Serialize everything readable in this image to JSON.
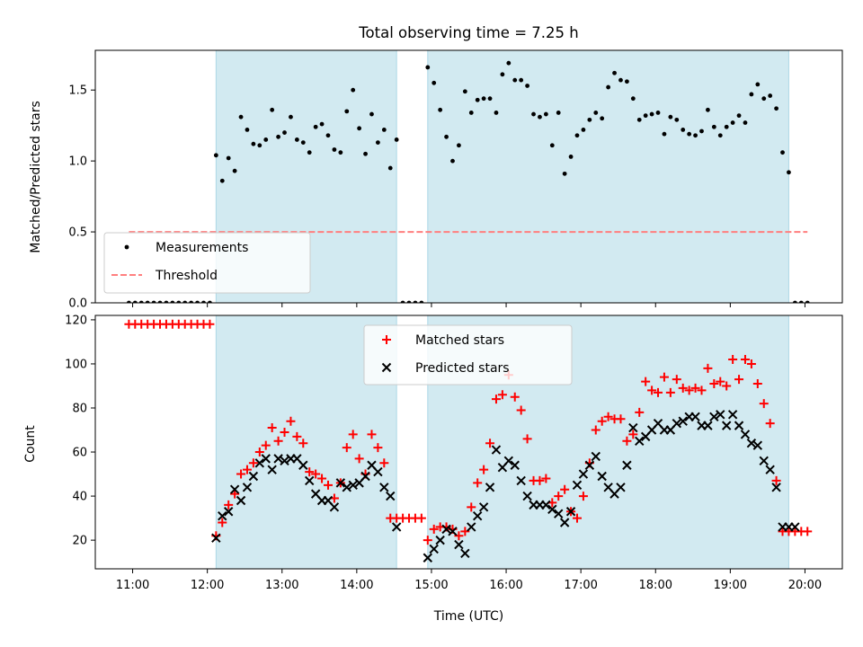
{
  "colors": {
    "span": "#add8e6",
    "measurement": "#000000",
    "threshold": "#ff7f7f",
    "matched": "#ff0000",
    "predicted": "#000000"
  },
  "chart_data": [
    {
      "type": "scatter",
      "title": "Total observing time = 7.25 h",
      "ylabel": "Matched/Predicted stars",
      "xlim": [
        "10:30",
        "20:30"
      ],
      "ylim": [
        0,
        1.78
      ],
      "yticks": [
        0.0,
        0.5,
        1.0,
        1.5
      ],
      "ytick_labels": [
        "0.0",
        "0.5",
        "1.0",
        "1.5"
      ],
      "observing_spans": [
        [
          "12:07",
          "14:32"
        ],
        [
          "14:57",
          "19:47"
        ]
      ],
      "threshold": {
        "value": 0.5,
        "x_range": [
          "10:57",
          "20:02"
        ]
      },
      "legend": {
        "placement": "lower-left",
        "entries": [
          "Measurements",
          "Threshold"
        ]
      },
      "series": [
        {
          "name": "Measurements",
          "x": [
            "10:57",
            "11:02",
            "11:07",
            "11:12",
            "11:17",
            "11:22",
            "11:27",
            "11:32",
            "11:37",
            "11:42",
            "11:47",
            "11:52",
            "11:57",
            "12:02",
            "12:07",
            "12:12",
            "12:17",
            "12:22",
            "12:27",
            "12:32",
            "12:37",
            "12:42",
            "12:47",
            "12:52",
            "12:57",
            "13:02",
            "13:07",
            "13:12",
            "13:17",
            "13:22",
            "13:27",
            "13:32",
            "13:37",
            "13:42",
            "13:47",
            "13:52",
            "13:57",
            "14:02",
            "14:07",
            "14:12",
            "14:17",
            "14:22",
            "14:27",
            "14:32",
            "14:37",
            "14:42",
            "14:47",
            "14:52",
            "14:57",
            "15:02",
            "15:07",
            "15:12",
            "15:17",
            "15:22",
            "15:27",
            "15:32",
            "15:37",
            "15:42",
            "15:47",
            "15:52",
            "15:57",
            "16:02",
            "16:07",
            "16:12",
            "16:17",
            "16:22",
            "16:27",
            "16:32",
            "16:37",
            "16:42",
            "16:47",
            "16:52",
            "16:57",
            "17:02",
            "17:07",
            "17:12",
            "17:17",
            "17:22",
            "17:27",
            "17:32",
            "17:37",
            "17:42",
            "17:47",
            "17:52",
            "17:57",
            "18:02",
            "18:07",
            "18:12",
            "18:17",
            "18:22",
            "18:27",
            "18:32",
            "18:37",
            "18:42",
            "18:47",
            "18:52",
            "18:57",
            "19:02",
            "19:07",
            "19:12",
            "19:17",
            "19:22",
            "19:27",
            "19:32",
            "19:37",
            "19:42",
            "19:47",
            "19:52",
            "19:57",
            "20:02"
          ],
          "y": [
            0,
            0,
            0,
            0,
            0,
            0,
            0,
            0,
            0,
            0,
            0,
            0,
            0,
            0,
            1.04,
            0.86,
            1.02,
            0.93,
            1.31,
            1.22,
            1.12,
            1.11,
            1.15,
            1.36,
            1.17,
            1.2,
            1.31,
            1.15,
            1.13,
            1.06,
            1.24,
            1.26,
            1.18,
            1.08,
            1.06,
            1.35,
            1.5,
            1.23,
            1.05,
            1.33,
            1.13,
            1.22,
            0.95,
            1.15,
            0,
            0,
            0,
            0,
            1.66,
            1.55,
            1.36,
            1.17,
            1.0,
            1.11,
            1.49,
            1.34,
            1.43,
            1.44,
            1.44,
            1.34,
            1.61,
            1.69,
            1.57,
            1.57,
            1.53,
            1.33,
            1.31,
            1.33,
            1.11,
            1.34,
            0.91,
            1.03,
            1.18,
            1.22,
            1.29,
            1.34,
            1.3,
            1.52,
            1.62,
            1.57,
            1.56,
            1.44,
            1.29,
            1.32,
            1.33,
            1.34,
            1.19,
            1.31,
            1.29,
            1.22,
            1.19,
            1.18,
            1.21,
            1.36,
            1.24,
            1.18,
            1.24,
            1.27,
            1.32,
            1.27,
            1.47,
            1.54,
            1.44,
            1.46,
            1.37,
            1.06,
            0.92,
            0,
            0,
            0
          ]
        }
      ]
    },
    {
      "type": "scatter",
      "xlabel": "Time (UTC)",
      "ylabel": "Count",
      "xlim": [
        "10:30",
        "20:30"
      ],
      "ylim": [
        7,
        122
      ],
      "xticks": [
        "11:00",
        "12:00",
        "13:00",
        "14:00",
        "15:00",
        "16:00",
        "17:00",
        "18:00",
        "19:00",
        "20:00"
      ],
      "yticks": [
        20,
        40,
        60,
        80,
        100,
        120
      ],
      "observing_spans": [
        [
          "12:07",
          "14:32"
        ],
        [
          "14:57",
          "19:47"
        ]
      ],
      "legend": {
        "placement": "upper-center",
        "entries": [
          "Matched stars",
          "Predicted stars"
        ]
      },
      "series": [
        {
          "name": "Matched stars",
          "marker": "+",
          "x": [
            "10:57",
            "11:02",
            "11:07",
            "11:12",
            "11:17",
            "11:22",
            "11:27",
            "11:32",
            "11:37",
            "11:42",
            "11:47",
            "11:52",
            "11:57",
            "12:02",
            "12:07",
            "12:12",
            "12:17",
            "12:22",
            "12:27",
            "12:32",
            "12:37",
            "12:42",
            "12:47",
            "12:52",
            "12:57",
            "13:02",
            "13:07",
            "13:12",
            "13:17",
            "13:22",
            "13:27",
            "13:32",
            "13:37",
            "13:42",
            "13:47",
            "13:52",
            "13:57",
            "14:02",
            "14:07",
            "14:12",
            "14:17",
            "14:22",
            "14:27",
            "14:32",
            "14:37",
            "14:42",
            "14:47",
            "14:52",
            "14:57",
            "15:02",
            "15:07",
            "15:12",
            "15:17",
            "15:22",
            "15:27",
            "15:32",
            "15:37",
            "15:42",
            "15:47",
            "15:52",
            "15:57",
            "16:02",
            "16:07",
            "16:12",
            "16:17",
            "16:22",
            "16:27",
            "16:32",
            "16:37",
            "16:42",
            "16:47",
            "16:52",
            "16:57",
            "17:02",
            "17:07",
            "17:12",
            "17:17",
            "17:22",
            "17:27",
            "17:32",
            "17:37",
            "17:42",
            "17:47",
            "17:52",
            "17:57",
            "18:02",
            "18:07",
            "18:12",
            "18:17",
            "18:22",
            "18:27",
            "18:32",
            "18:37",
            "18:42",
            "18:47",
            "18:52",
            "18:57",
            "19:02",
            "19:07",
            "19:12",
            "19:17",
            "19:22",
            "19:27",
            "19:32",
            "19:37",
            "19:42",
            "19:47",
            "19:52",
            "19:57",
            "20:02"
          ],
          "y": [
            118,
            118,
            118,
            118,
            118,
            118,
            118,
            118,
            118,
            118,
            118,
            118,
            118,
            118,
            22,
            28,
            36,
            41,
            50,
            52,
            55,
            60,
            63,
            71,
            65,
            69,
            74,
            67,
            64,
            51,
            50,
            48,
            45,
            39,
            46,
            62,
            68,
            57,
            50,
            68,
            62,
            55,
            30,
            30,
            30,
            30,
            30,
            30,
            20,
            25,
            26,
            26,
            25,
            22,
            24,
            35,
            46,
            52,
            64,
            84,
            86,
            95,
            85,
            79,
            66,
            47,
            47,
            48,
            37,
            40,
            43,
            33,
            30,
            40,
            55,
            70,
            74,
            76,
            75,
            75,
            65,
            68,
            78,
            92,
            88,
            87,
            94,
            87,
            93,
            89,
            88,
            89,
            88,
            98,
            91,
            92,
            90,
            102,
            93,
            102,
            100,
            91,
            82,
            73,
            47,
            24,
            24,
            24,
            24,
            24
          ]
        },
        {
          "name": "Predicted stars",
          "marker": "x",
          "x": [
            "12:07",
            "12:12",
            "12:17",
            "12:22",
            "12:27",
            "12:32",
            "12:37",
            "12:42",
            "12:47",
            "12:52",
            "12:57",
            "13:02",
            "13:07",
            "13:12",
            "13:17",
            "13:22",
            "13:27",
            "13:32",
            "13:37",
            "13:42",
            "13:47",
            "13:52",
            "13:57",
            "14:02",
            "14:07",
            "14:12",
            "14:17",
            "14:22",
            "14:27",
            "14:32",
            "14:57",
            "15:02",
            "15:07",
            "15:12",
            "15:17",
            "15:22",
            "15:27",
            "15:32",
            "15:37",
            "15:42",
            "15:47",
            "15:52",
            "15:57",
            "16:02",
            "16:07",
            "16:12",
            "16:17",
            "16:22",
            "16:27",
            "16:32",
            "16:37",
            "16:42",
            "16:47",
            "16:52",
            "16:57",
            "17:02",
            "17:07",
            "17:12",
            "17:17",
            "17:22",
            "17:27",
            "17:32",
            "17:37",
            "17:42",
            "17:47",
            "17:52",
            "17:57",
            "18:02",
            "18:07",
            "18:12",
            "18:17",
            "18:22",
            "18:27",
            "18:32",
            "18:37",
            "18:42",
            "18:47",
            "18:52",
            "18:57",
            "19:02",
            "19:07",
            "19:12",
            "19:17",
            "19:22",
            "19:27",
            "19:32",
            "19:37",
            "19:42",
            "19:47",
            "19:52"
          ],
          "y": [
            21,
            31,
            33,
            43,
            38,
            44,
            49,
            55,
            57,
            52,
            57,
            56,
            57,
            57,
            54,
            47,
            41,
            38,
            38,
            35,
            46,
            44,
            45,
            46,
            49,
            54,
            51,
            44,
            40,
            26,
            12,
            16,
            20,
            25,
            24,
            18,
            14,
            26,
            31,
            35,
            44,
            61,
            53,
            56,
            54,
            47,
            40,
            36,
            36,
            36,
            34,
            32,
            28,
            33,
            45,
            50,
            54,
            58,
            49,
            44,
            41,
            44,
            54,
            71,
            65,
            67,
            70,
            73,
            70,
            70,
            73,
            74,
            76,
            76,
            72,
            72,
            76,
            77,
            72,
            77,
            72,
            68,
            64,
            63,
            56,
            52,
            44,
            26,
            26,
            26
          ]
        }
      ]
    }
  ]
}
